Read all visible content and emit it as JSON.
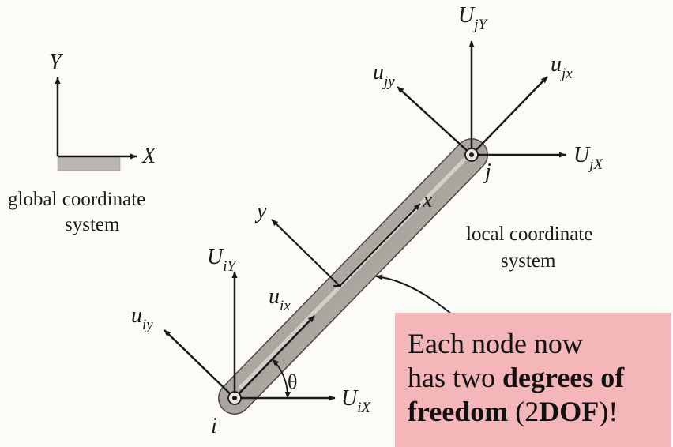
{
  "global_axes": {
    "y_label": "Y",
    "x_label": "X",
    "caption_line1": "global coordinate",
    "caption_line2": "system"
  },
  "local_axes": {
    "x_label": "x",
    "y_label": "y",
    "caption_line1": "local coordinate",
    "caption_line2": "system"
  },
  "angle_label": "θ",
  "node_i": {
    "name": "i",
    "U_Y": {
      "base": "U",
      "sub": "iY"
    },
    "U_X": {
      "base": "U",
      "sub": "iX"
    },
    "u_x": {
      "base": "u",
      "sub": "ix"
    },
    "u_y": {
      "base": "u",
      "sub": "iy"
    }
  },
  "node_j": {
    "name": "j",
    "U_Y": {
      "base": "U",
      "sub": "jY"
    },
    "U_X": {
      "base": "U",
      "sub": "jX"
    },
    "u_x": {
      "base": "u",
      "sub": "jx"
    },
    "u_y": {
      "base": "u",
      "sub": "jy"
    }
  },
  "note": {
    "line1": "Each node now",
    "line2_plain": "has two ",
    "line2_bold": "degrees of",
    "line3_bold1": "freedom",
    "line3_plain1": " (2",
    "line3_bold2": "DOF",
    "line3_plain2": ")!"
  },
  "colors": {
    "ink": "#1a1a1a",
    "note_background": "#f5b6b9",
    "bar_fill": "#b8b4ae"
  }
}
